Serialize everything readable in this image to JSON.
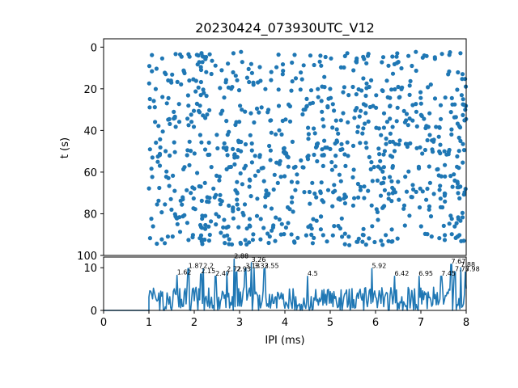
{
  "chart_data": [
    {
      "type": "scatter",
      "title": "20230424_073930UTC_V12",
      "xlabel": "",
      "ylabel": "t (s)",
      "xlim": [
        0,
        8
      ],
      "ylim": [
        100,
        -4
      ],
      "y_inverted": true,
      "yticks": [
        "0",
        "20",
        "40",
        "60",
        "80",
        "100"
      ],
      "marker_color": "#1f77b4",
      "description_of_pattern": "",
      "seed": 12,
      "n_points": 900
    },
    {
      "type": "line",
      "xlabel": "IPI (ms)",
      "ylabel": "",
      "xlim": [
        0,
        8
      ],
      "ylim": [
        0,
        12.5
      ],
      "xticks": [
        "0",
        "1",
        "2",
        "3",
        "4",
        "5",
        "6",
        "7",
        "8"
      ],
      "yticks": [
        "0",
        "10"
      ],
      "line_color": "#1f77b4",
      "peaks": [
        {
          "x": 1.62,
          "y": 8.2,
          "label": "1.62"
        },
        {
          "x": 1.87,
          "y": 9.8,
          "label": "1.87"
        },
        {
          "x": 2.15,
          "y": 8.5,
          "label": "2.15"
        },
        {
          "x": 2.2,
          "y": 9.8,
          "label": "2.2"
        },
        {
          "x": 2.47,
          "y": 8.0,
          "label": "2.47"
        },
        {
          "x": 2.72,
          "y": 9.0,
          "label": "2.72"
        },
        {
          "x": 2.88,
          "y": 12.0,
          "label": "2.88"
        },
        {
          "x": 2.93,
          "y": 9.0,
          "label": "2.93"
        },
        {
          "x": 3.13,
          "y": 9.8,
          "label": "3.13"
        },
        {
          "x": 3.26,
          "y": 11.2,
          "label": "3.26"
        },
        {
          "x": 3.32,
          "y": 9.8,
          "label": "3.32"
        },
        {
          "x": 3.55,
          "y": 9.8,
          "label": "3.55"
        },
        {
          "x": 4.5,
          "y": 8.0,
          "label": "4.5"
        },
        {
          "x": 5.92,
          "y": 9.8,
          "label": "5.92"
        },
        {
          "x": 6.42,
          "y": 8.0,
          "label": "6.42"
        },
        {
          "x": 6.95,
          "y": 8.0,
          "label": "6.95"
        },
        {
          "x": 7.45,
          "y": 8.0,
          "label": "7.45"
        },
        {
          "x": 7.67,
          "y": 10.8,
          "label": "7.67"
        },
        {
          "x": 7.75,
          "y": 9.0,
          "label": "7.75"
        },
        {
          "x": 7.88,
          "y": 10.0,
          "label": "7.88"
        },
        {
          "x": 7.98,
          "y": 9.0,
          "label": "7.98"
        }
      ]
    }
  ]
}
